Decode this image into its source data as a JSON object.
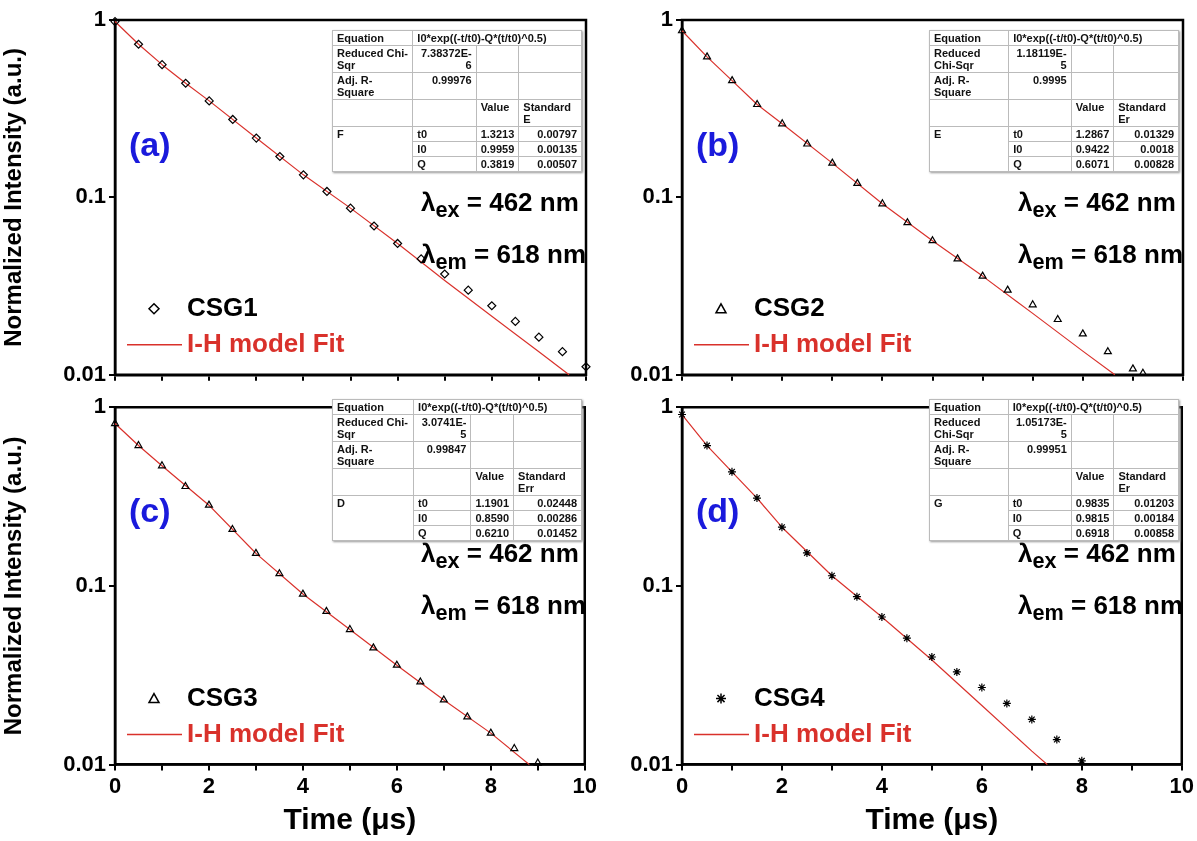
{
  "chart_data": [
    {
      "type": "scatter",
      "ylabel": "Normalized Intensity (a.u.)",
      "xlim": [
        0,
        10
      ],
      "xticks": [
        0,
        {
          "value": 1,
          "label": null
        },
        2,
        {
          "value": 3,
          "label": null
        },
        4,
        {
          "value": 5,
          "label": null
        },
        6,
        {
          "value": 7,
          "label": null
        },
        8,
        {
          "value": 9,
          "label": null
        },
        10
      ],
      "ylim": [
        0.01,
        1
      ],
      "yticks": [
        0.01,
        0.1,
        1
      ],
      "log": "y",
      "grid": false,
      "legend": "bottom left",
      "tick_labels": "y",
      "annotations": [
        "(a)",
        "λ$_{ex}$ = 462 nm",
        "λ$_{em}$ = 618 nm",
        "Equation",
        "I0*exp((-t/t0)-Q*(t/t0)^0.5)",
        "Reduced Chi-Sqr",
        "7.38372E-6",
        "Adj. R-Square",
        "0.99976",
        "Value",
        "Standard E",
        "F",
        "t0",
        "1.3213",
        "0.00797",
        "I0",
        "0.9959",
        "0.00135",
        "Q",
        "0.3819",
        "0.00507"
      ],
      "series": [
        {
          "name": "CSG1",
          "type": "scatter",
          "marker": "diamond",
          "color": "#000000",
          "x": [
            0,
            0.5,
            1,
            1.5,
            2,
            2.5,
            3,
            3.5,
            4,
            4.5,
            5,
            5.5,
            6,
            6.5,
            7,
            7.5,
            8,
            8.5,
            9,
            9.5,
            10
          ],
          "values": [
            0.98,
            0.73,
            0.56,
            0.44,
            0.35,
            0.275,
            0.216,
            0.17,
            0.134,
            0.108,
            0.087,
            0.069,
            0.055,
            0.045,
            0.037,
            0.03,
            0.0245,
            0.02,
            0.0163,
            0.0135,
            0.0111
          ]
        },
        {
          "name": "I-H model Fit",
          "type": "line",
          "marker": "none",
          "line_style": "solid",
          "color": "#d9312b",
          "x": [
            0,
            0.5,
            1,
            1.5,
            2,
            3,
            4,
            5,
            6,
            7,
            8,
            9,
            9.64
          ],
          "values": [
            0.98,
            0.73,
            0.56,
            0.44,
            0.35,
            0.216,
            0.134,
            0.087,
            0.055,
            0.034,
            0.0214,
            0.0135,
            0.01
          ]
        }
      ]
    },
    {
      "type": "scatter",
      "xlim": [
        0,
        10
      ],
      "xticks": [
        0,
        {
          "value": 1,
          "label": null
        },
        2,
        {
          "value": 3,
          "label": null
        },
        4,
        {
          "value": 5,
          "label": null
        },
        6,
        {
          "value": 7,
          "label": null
        },
        8,
        {
          "value": 9,
          "label": null
        },
        10
      ],
      "ylim": [
        0.01,
        1
      ],
      "yticks": [
        0.01,
        0.1,
        1
      ],
      "log": "y",
      "grid": false,
      "legend": "bottom left",
      "tick_labels": "y",
      "annotations": [
        "(b)",
        "λ$_{ex}$ = 462 nm",
        "λ$_{em}$ = 618 nm",
        "Equation",
        "I0*exp((-t/t0)-Q*(t/t0)^0.5)",
        "Reduced Chi-Sqr",
        "1.18119E-5",
        "Adj. R-Square",
        "0.9995",
        "Value",
        "Standard Er",
        "E",
        "t0",
        "1.2867",
        "0.01329",
        "I0",
        "0.9422",
        "0.0018",
        "Q",
        "0.6071",
        "0.00828"
      ],
      "series": [
        {
          "name": "CSG2",
          "type": "scatter",
          "marker": "triangle",
          "color": "#000000",
          "x": [
            0,
            0.5,
            1,
            1.5,
            2,
            2.5,
            3,
            3.5,
            4,
            4.5,
            5,
            5.5,
            6,
            6.5,
            7,
            7.5,
            8,
            8.5,
            9,
            9.2
          ],
          "values": [
            0.87,
            0.62,
            0.455,
            0.334,
            0.26,
            0.2,
            0.156,
            0.12,
            0.092,
            0.072,
            0.057,
            0.045,
            0.036,
            0.03,
            0.0248,
            0.0205,
            0.017,
            0.0135,
            0.0108,
            0.0102
          ]
        },
        {
          "name": "I-H model Fit",
          "type": "line",
          "marker": "none",
          "line_style": "solid",
          "color": "#d9312b",
          "x": [
            0,
            0.5,
            1,
            1.5,
            2,
            3,
            4,
            5,
            6,
            7,
            8,
            8.64
          ],
          "values": [
            0.87,
            0.62,
            0.455,
            0.334,
            0.26,
            0.156,
            0.092,
            0.057,
            0.036,
            0.0222,
            0.0136,
            0.01
          ]
        }
      ]
    },
    {
      "type": "scatter",
      "xlabel": "Time (μs)",
      "ylabel": "Normalized Intensity (a.u.)",
      "xlim": [
        0,
        10
      ],
      "xticks": [
        0,
        {
          "value": 1,
          "label": null
        },
        2,
        {
          "value": 3,
          "label": null
        },
        4,
        {
          "value": 5,
          "label": null
        },
        6,
        {
          "value": 7,
          "label": null
        },
        8,
        {
          "value": 9,
          "label": null
        },
        10
      ],
      "ylim": [
        0.01,
        1
      ],
      "yticks": [
        0.01,
        0.1,
        1
      ],
      "log": "y",
      "grid": false,
      "legend": "bottom left",
      "annotations": [
        "(c)",
        "λ$_{ex}$ = 462 nm",
        "λ$_{em}$ = 618 nm",
        "Equation",
        "I0*exp((-t/t0)-Q*(t/t0)^0.5)",
        "Reduced Chi-Sqr",
        "3.0741E-5",
        "Adj. R-Square",
        "0.99847",
        "Value",
        "Standard Err",
        "D",
        "t0",
        "1.1901",
        "0.02448",
        "I0",
        "0.8590",
        "0.00286",
        "Q",
        "0.6210",
        "0.01452"
      ],
      "series": [
        {
          "name": "CSG3",
          "type": "scatter",
          "marker": "triangle",
          "color": "#000000",
          "x": [
            0,
            0.5,
            1,
            1.5,
            2,
            2.5,
            3,
            3.5,
            4,
            4.5,
            5,
            5.5,
            6,
            6.5,
            7,
            7.5,
            8,
            8.5,
            9
          ],
          "values": [
            0.81,
            0.61,
            0.47,
            0.36,
            0.283,
            0.207,
            0.152,
            0.117,
            0.09,
            0.072,
            0.057,
            0.045,
            0.036,
            0.029,
            0.023,
            0.0185,
            0.015,
            0.0123,
            0.0102
          ]
        },
        {
          "name": "I-H model Fit",
          "type": "line",
          "marker": "none",
          "line_style": "solid",
          "color": "#d9312b",
          "x": [
            0,
            0.5,
            1,
            2,
            3,
            4,
            5,
            6,
            7,
            8,
            8.82
          ],
          "values": [
            0.81,
            0.61,
            0.47,
            0.283,
            0.152,
            0.09,
            0.057,
            0.036,
            0.023,
            0.015,
            0.01
          ]
        }
      ]
    },
    {
      "type": "scatter",
      "xlabel": "Time (μs)",
      "xlim": [
        0,
        10
      ],
      "xticks": [
        0,
        {
          "value": 1,
          "label": null
        },
        2,
        {
          "value": 3,
          "label": null
        },
        4,
        {
          "value": 5,
          "label": null
        },
        6,
        {
          "value": 7,
          "label": null
        },
        8,
        {
          "value": 9,
          "label": null
        },
        10
      ],
      "ylim": [
        0.01,
        1
      ],
      "yticks": [
        0.01,
        0.1,
        1
      ],
      "log": "y",
      "grid": false,
      "legend": "bottom left",
      "annotations": [
        "(d)",
        "λ$_{ex}$ = 462 nm",
        "λ$_{em}$ = 618 nm",
        "Equation",
        "I0*exp((-t/t0)-Q*(t/t0)^0.5)",
        "Reduced Chi-Sqr",
        "1.05173E-5",
        "Adj. R-Square",
        "0.99951",
        "Value",
        "Standard Er",
        "G",
        "t0",
        "0.9835",
        "0.01203",
        "I0",
        "0.9815",
        "0.00184",
        "Q",
        "0.6918",
        "0.00858"
      ],
      "series": [
        {
          "name": "CSG4",
          "type": "scatter",
          "marker": "cross",
          "color": "#000000",
          "x": [
            0,
            0.5,
            1,
            1.5,
            2,
            2.5,
            3,
            3.5,
            4,
            4.5,
            5,
            5.5,
            6,
            6.5,
            7,
            7.5,
            8
          ],
          "values": [
            0.91,
            0.61,
            0.435,
            0.31,
            0.213,
            0.153,
            0.114,
            0.087,
            0.067,
            0.051,
            0.04,
            0.033,
            0.027,
            0.022,
            0.0179,
            0.0138,
            0.0105
          ]
        },
        {
          "name": "I-H model Fit",
          "type": "line",
          "marker": "none",
          "line_style": "solid",
          "color": "#d9312b",
          "x": [
            0,
            0.5,
            1,
            1.5,
            2,
            3,
            4,
            5,
            6,
            7,
            7.31
          ],
          "values": [
            0.91,
            0.61,
            0.435,
            0.31,
            0.213,
            0.114,
            0.067,
            0.0385,
            0.0214,
            0.0119,
            0.01
          ]
        }
      ]
    }
  ]
}
